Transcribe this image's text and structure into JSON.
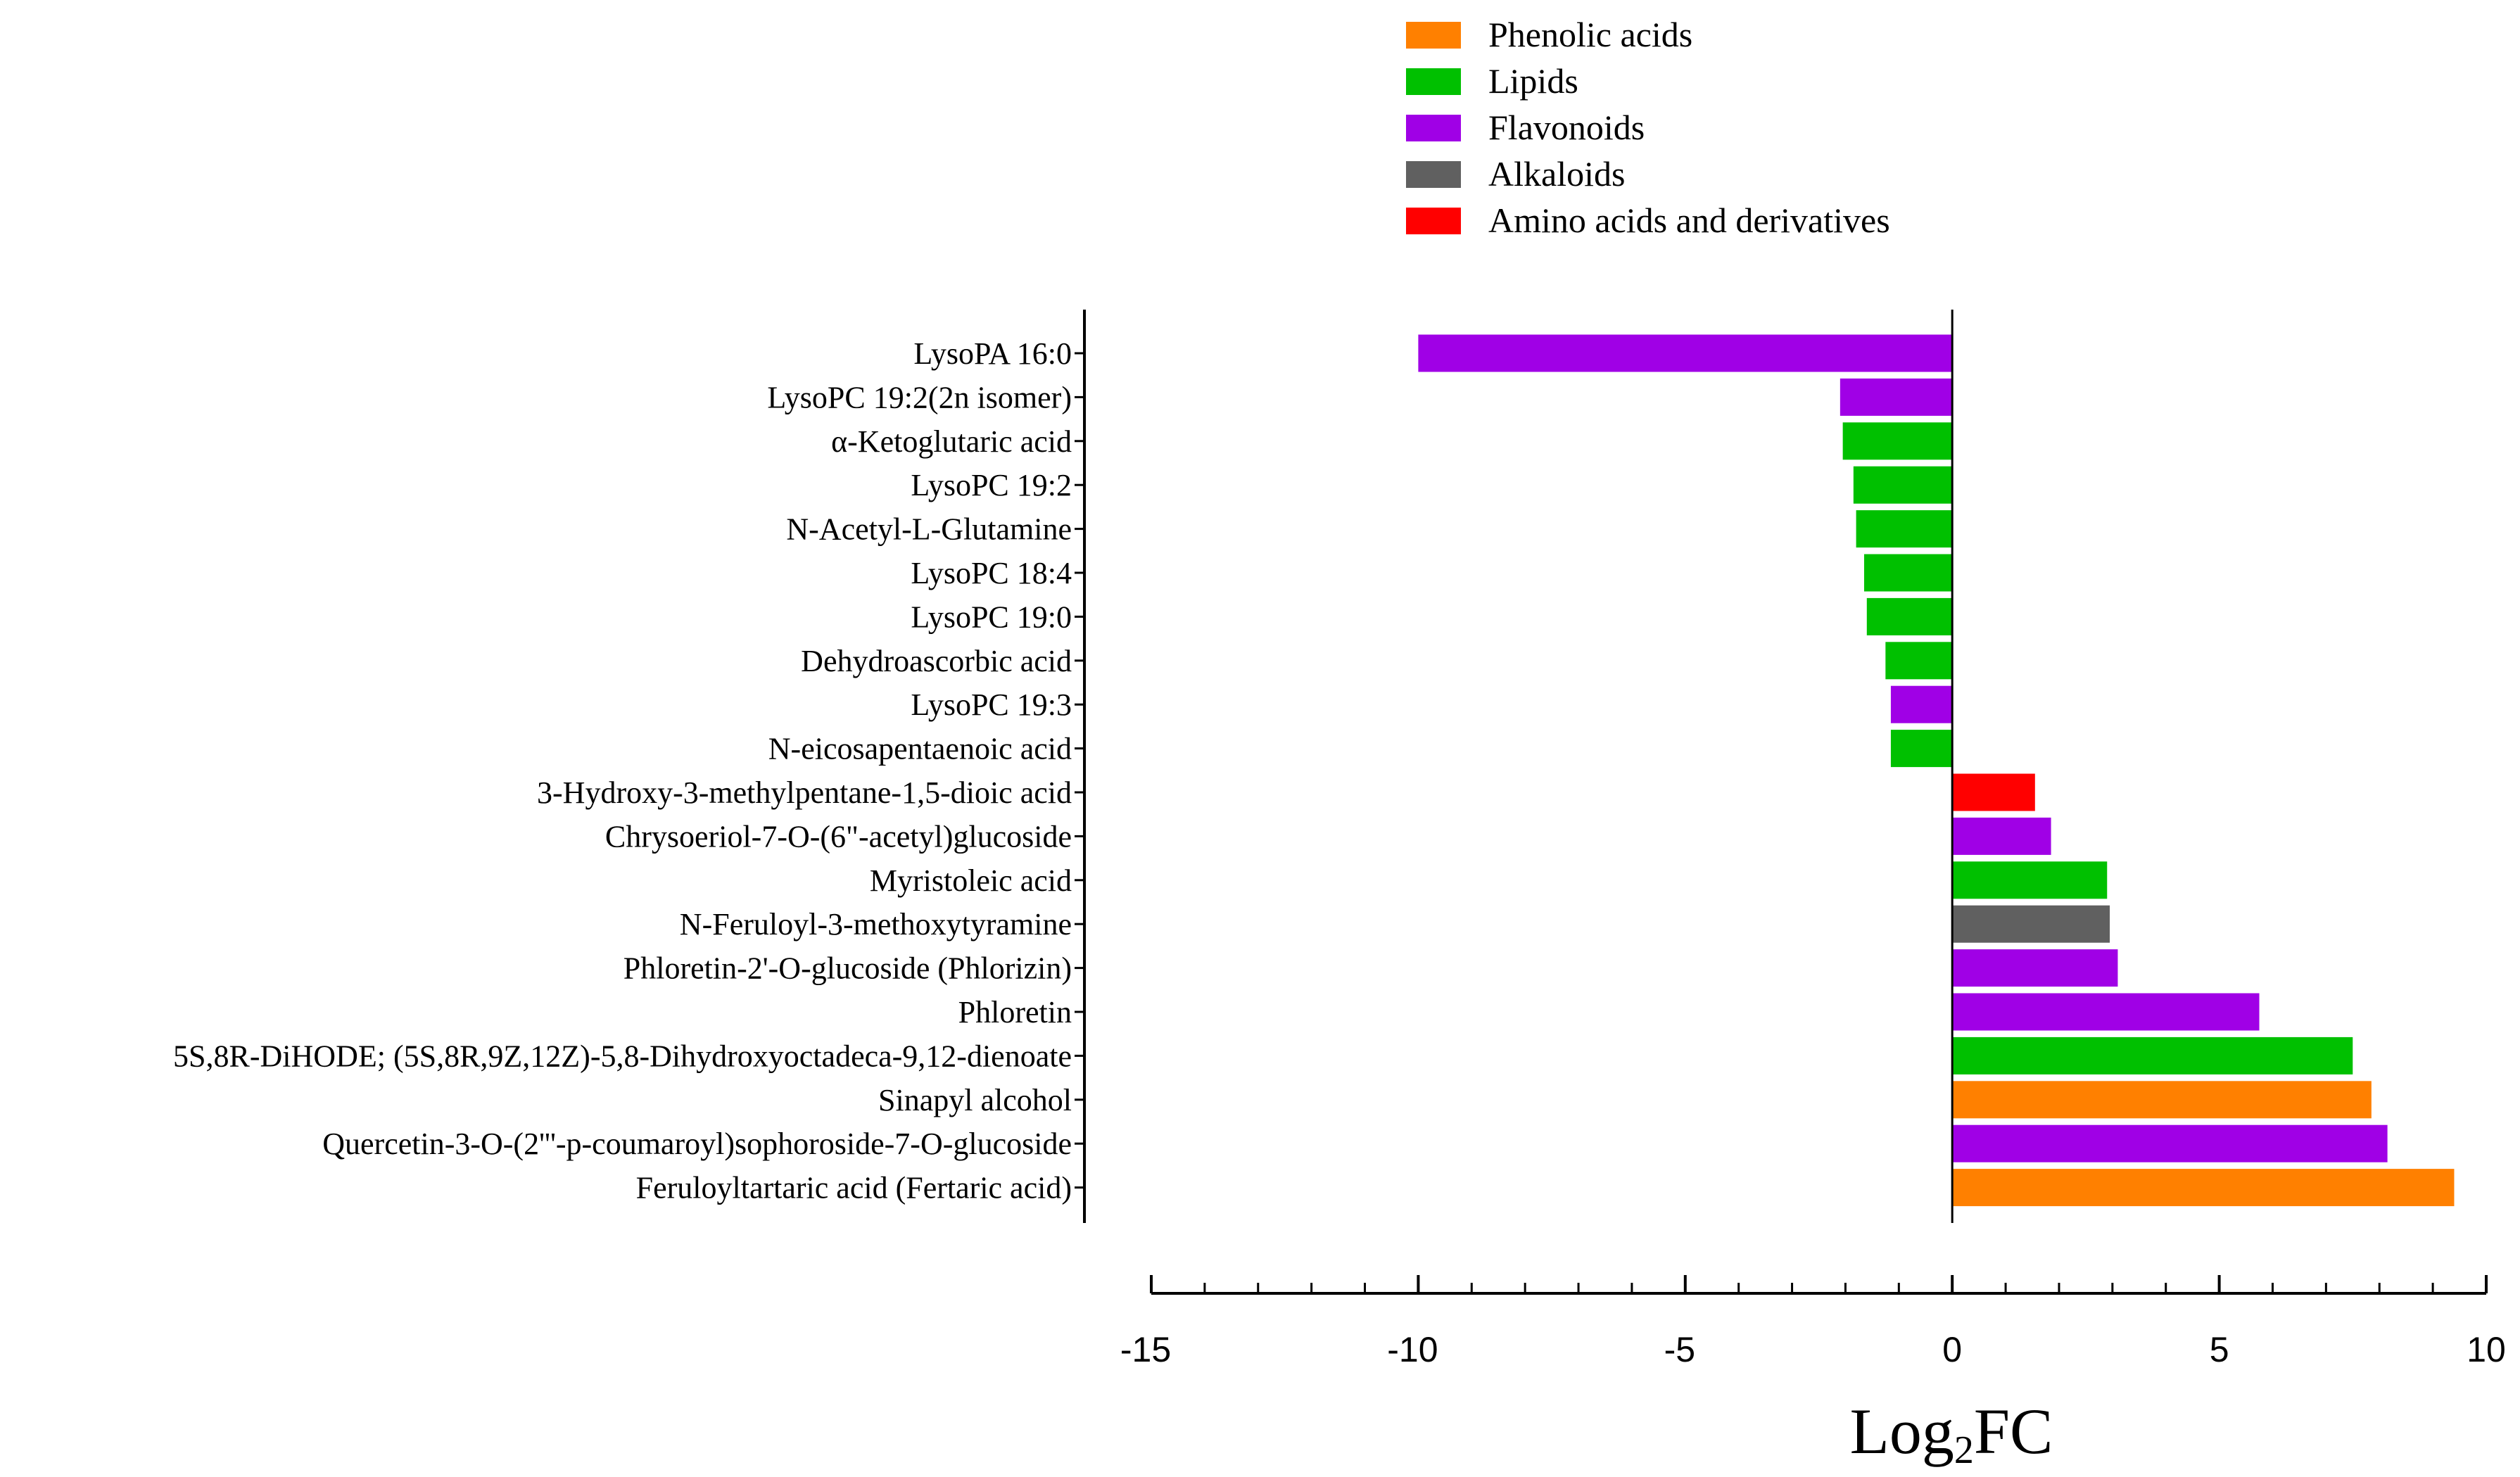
{
  "chart_data": {
    "type": "bar",
    "orientation": "horizontal",
    "xlabel_main": "Log",
    "xlabel_sub": "2",
    "xlabel_tail": "FC",
    "xlim": [
      -15,
      10
    ],
    "xticks": [
      -15,
      -10,
      -5,
      0,
      5,
      10
    ],
    "grid": false,
    "legend_position": "top",
    "legend": [
      {
        "name": "Phenolic acids",
        "color": "#ff8000"
      },
      {
        "name": "Lipids",
        "color": "#00c000"
      },
      {
        "name": "Flavonoids",
        "color": "#a000e6"
      },
      {
        "name": "Alkaloids",
        "color": "#606060"
      },
      {
        "name": "Amino acids and derivatives",
        "color": "#ff0000"
      }
    ],
    "categories": [
      "LysoPA 16:0",
      "LysoPC 19:2(2n isomer)",
      "α-Ketoglutaric acid",
      "LysoPC 19:2",
      "N-Acetyl-L-Glutamine",
      "LysoPC 18:4",
      "LysoPC 19:0",
      "Dehydroascorbic acid",
      "LysoPC 19:3",
      "N-eicosapentaenoic acid",
      "3-Hydroxy-3-methylpentane-1,5-dioic acid",
      "Chrysoeriol-7-O-(6\"-acetyl)glucoside",
      "Myristoleic acid",
      "N-Feruloyl-3-methoxytyramine",
      "Phloretin-2'-O-glucoside (Phlorizin)",
      "Phloretin",
      "5S,8R-DiHODE; (5S,8R,9Z,12Z)-5,8-Dihydroxyoctadeca-9,12-dienoate",
      "Sinapyl alcohol",
      "Quercetin-3-O-(2'''-p-coumaroyl)sophoroside-7-O-glucoside",
      "Feruloyltartaric acid (Fertaric acid)"
    ],
    "values": [
      -10.0,
      -2.1,
      -2.05,
      -1.85,
      -1.8,
      -1.65,
      -1.6,
      -1.25,
      -1.15,
      -1.15,
      1.55,
      1.85,
      2.9,
      2.95,
      3.1,
      5.75,
      7.5,
      7.85,
      8.15,
      9.4
    ],
    "classes": [
      "Flavonoids",
      "Flavonoids",
      "Lipids",
      "Lipids",
      "Lipids",
      "Lipids",
      "Lipids",
      "Lipids",
      "Flavonoids",
      "Lipids",
      "Amino acids and derivatives",
      "Flavonoids",
      "Lipids",
      "Alkaloids",
      "Flavonoids",
      "Flavonoids",
      "Lipids",
      "Phenolic acids",
      "Flavonoids",
      "Phenolic acids"
    ]
  }
}
